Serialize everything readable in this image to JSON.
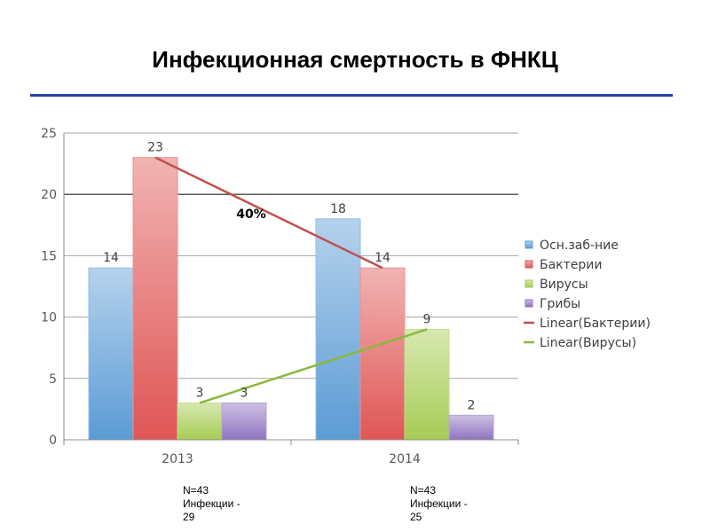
{
  "slide": {
    "title": "Инфекционная смертность в ФНКЦ"
  },
  "chart_data": {
    "type": "bar",
    "categories": [
      "2013",
      "2014"
    ],
    "series": [
      {
        "name": "Осн.заб-ние",
        "values": [
          14,
          18
        ],
        "color": "#5b9bd5"
      },
      {
        "name": "Бактерии",
        "values": [
          23,
          14
        ],
        "color": "#e05555"
      },
      {
        "name": "Вирусы",
        "values": [
          3,
          9
        ],
        "color": "#a6cc54"
      },
      {
        "name": "Грибы",
        "values": [
          3,
          2
        ],
        "color": "#8f73c0"
      }
    ],
    "trendlines": [
      {
        "name": "Linear(Бактерии)",
        "series": "Бактерии",
        "values": [
          23,
          14
        ],
        "color": "#c0504d"
      },
      {
        "name": "Linear(Вирусы)",
        "series": "Вирусы",
        "values": [
          3,
          9
        ],
        "color": "#8cb83c"
      }
    ],
    "annotation": "40%",
    "ylim": [
      0,
      25
    ],
    "yticks": [
      0,
      5,
      10,
      15,
      20,
      25
    ],
    "grid": true,
    "legend": "right",
    "xlabel": "",
    "ylabel": ""
  },
  "notes": [
    {
      "line1": "N=43",
      "line2": "Инфекции -",
      "line3": "29"
    },
    {
      "line1": "N=43",
      "line2": "Инфекции -",
      "line3": "25"
    }
  ]
}
